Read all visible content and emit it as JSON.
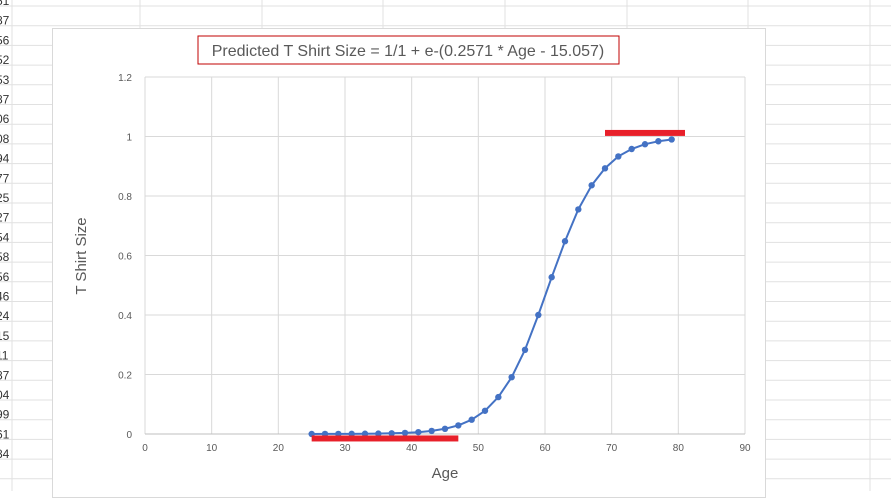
{
  "spreadsheet": {
    "row_fragments": [
      "51",
      "87",
      "56",
      "52",
      "53",
      "87",
      "06",
      "08",
      "94",
      "77",
      "25",
      "27",
      "54",
      "58",
      "56",
      "46",
      "24",
      "15",
      "11",
      "87",
      "04",
      "99",
      "61",
      "84"
    ]
  },
  "chart_data": {
    "type": "line",
    "title": "Predicted T Shirt Size = 1/1 + e-(0.2571 * Age - 15.057)",
    "xlabel": "Age",
    "ylabel": "T Shirt Size",
    "xlim": [
      0,
      90
    ],
    "ylim": [
      0,
      1.2
    ],
    "x_ticks": [
      "0",
      "10",
      "20",
      "30",
      "40",
      "50",
      "60",
      "70",
      "80",
      "90"
    ],
    "y_ticks": [
      "0",
      "0.2",
      "0.4",
      "0.6",
      "0.8",
      "1",
      "1.2"
    ],
    "grid": true,
    "series": [
      {
        "color": "#4472c4",
        "x": [
          25,
          27,
          29,
          31,
          33,
          35,
          37,
          39,
          41,
          43,
          45,
          47,
          49,
          51,
          53,
          55,
          57,
          59,
          61,
          63,
          65,
          67,
          69,
          71,
          73,
          75,
          77,
          79
        ],
        "y": [
          0.0001,
          0.0002,
          0.0003,
          0.0005,
          0.0008,
          0.0013,
          0.0022,
          0.0037,
          0.0062,
          0.0104,
          0.0174,
          0.0289,
          0.048,
          0.078,
          0.124,
          0.191,
          0.283,
          0.4,
          0.527,
          0.648,
          0.755,
          0.836,
          0.893,
          0.933,
          0.958,
          0.974,
          0.984,
          0.99
        ]
      }
    ],
    "annotations": [
      {
        "type": "bar-marker",
        "color": "#e8202a",
        "x_start": 25,
        "x_end": 47,
        "y": -0.015
      },
      {
        "type": "bar-marker",
        "color": "#e8202a",
        "x_start": 69,
        "x_end": 81,
        "y": 1.012
      }
    ]
  }
}
